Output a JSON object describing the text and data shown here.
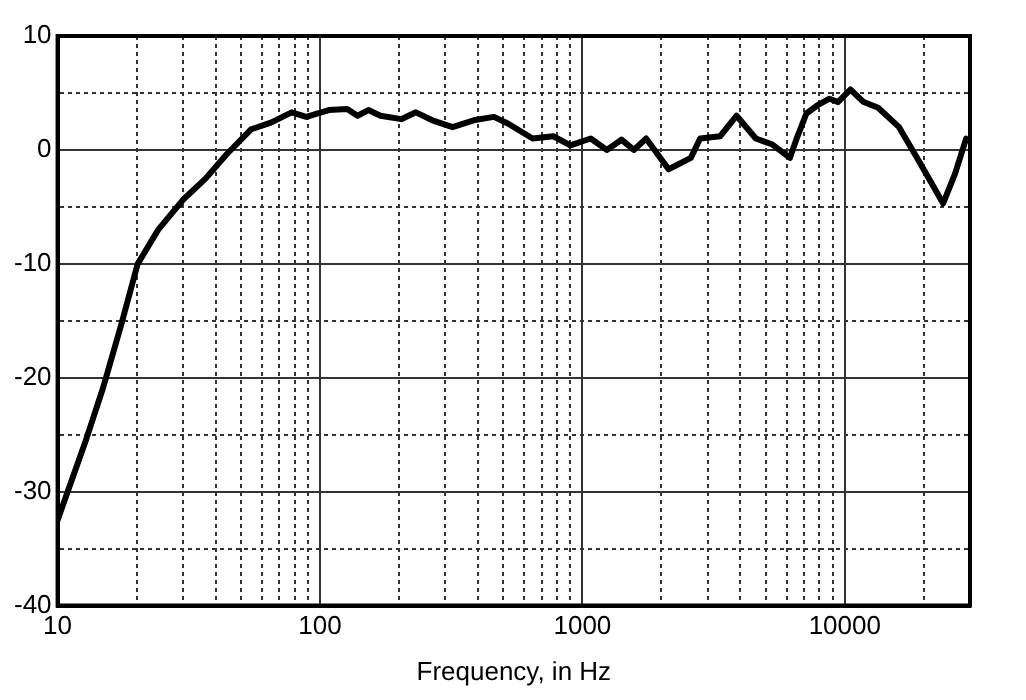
{
  "chart_data": {
    "type": "line",
    "xlabel": "Frequency, in Hz",
    "log": "x",
    "grid": true,
    "marker": "none",
    "line_style": "solid",
    "legend": false,
    "xlim": [
      10,
      30000
    ],
    "xticks": [
      10,
      {
        "value": 20,
        "label": null
      },
      {
        "value": 30,
        "label": null
      },
      {
        "value": 40,
        "label": null
      },
      {
        "value": 50,
        "label": null
      },
      {
        "value": 60,
        "label": null
      },
      {
        "value": 70,
        "label": null
      },
      {
        "value": 80,
        "label": null
      },
      {
        "value": 90,
        "label": null
      },
      100,
      {
        "value": 200,
        "label": null
      },
      {
        "value": 300,
        "label": null
      },
      {
        "value": 400,
        "label": null
      },
      {
        "value": 500,
        "label": null
      },
      {
        "value": 600,
        "label": null
      },
      {
        "value": 700,
        "label": null
      },
      {
        "value": 800,
        "label": null
      },
      {
        "value": 900,
        "label": null
      },
      1000,
      {
        "value": 2000,
        "label": null
      },
      {
        "value": 3000,
        "label": null
      },
      {
        "value": 4000,
        "label": null
      },
      {
        "value": 5000,
        "label": null
      },
      {
        "value": 6000,
        "label": null
      },
      {
        "value": 7000,
        "label": null
      },
      {
        "value": 8000,
        "label": null
      },
      {
        "value": 9000,
        "label": null
      },
      10000,
      {
        "value": 20000,
        "label": null
      }
    ],
    "ylim": [
      -40,
      10
    ],
    "yticks": [
      -40,
      {
        "value": -35,
        "label": null
      },
      -30,
      {
        "value": -25,
        "label": null
      },
      -20,
      {
        "value": -15,
        "label": null
      },
      -10,
      {
        "value": -5,
        "label": null
      },
      0,
      {
        "value": 5,
        "label": null
      },
      10
    ],
    "series": [
      {
        "color": "#000000",
        "x": [
          10,
          12.9,
          14.9,
          17.5,
          20.2,
          24.2,
          30,
          36.7,
          44,
          54.6,
          65,
          78,
          88.7,
          108,
          127,
          139,
          153,
          170,
          204,
          232,
          268,
          320,
          385,
          460,
          522,
          646,
          775,
          900,
          1075,
          1238,
          1409,
          1570,
          1750,
          2130,
          2590,
          2810,
          3350,
          3870,
          4580,
          5270,
          6180,
          6530,
          7140,
          7850,
          8740,
          9410,
          10500,
          11800,
          13400,
          16100,
          19400,
          23700,
          26300,
          29000
        ],
        "values": [
          -32.5,
          -25.3,
          -20.9,
          -15.3,
          -10,
          -7,
          -4.4,
          -2.5,
          -0.4,
          1.8,
          2.4,
          3.3,
          2.9,
          3.5,
          3.6,
          3,
          3.5,
          3,
          2.7,
          3.3,
          2.6,
          2,
          2.6,
          2.9,
          2.3,
          1,
          1.2,
          0.4,
          1,
          0,
          0.9,
          0,
          1,
          -1.7,
          -0.7,
          1,
          1.2,
          3,
          1,
          0.5,
          -0.7,
          0.9,
          3.2,
          3.9,
          4.5,
          4.2,
          5.3,
          4.2,
          3.7,
          2,
          -1.2,
          -4.7,
          -2.1,
          1
        ]
      }
    ]
  }
}
